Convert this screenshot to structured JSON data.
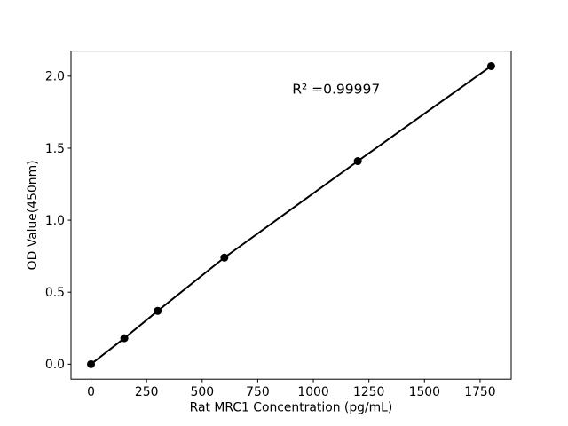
{
  "figure": {
    "background": "#ffffff",
    "foreground": "#000000"
  },
  "chart_data": {
    "type": "line",
    "title": "",
    "xlabel": "Rat MRC1 Concentration (pg/mL)",
    "ylabel": "OD Value(450nm)",
    "series": [
      {
        "name": "standard-curve",
        "x": [
          0,
          150,
          300,
          600,
          1200,
          1800
        ],
        "y": [
          0.0,
          0.18,
          0.37,
          0.74,
          1.41,
          2.07
        ]
      }
    ],
    "xlim": [
      -90,
      1890
    ],
    "ylim": [
      -0.104,
      2.174
    ],
    "xticks": [
      0,
      250,
      500,
      750,
      1000,
      1250,
      1500,
      1750
    ],
    "xtick_labels": [
      "0",
      "250",
      "500",
      "750",
      "1000",
      "1250",
      "1500",
      "1750"
    ],
    "yticks": [
      0,
      0.5,
      1.0,
      1.5,
      2.0
    ],
    "ytick_labels": [
      "0.0",
      "0.5",
      "1.0",
      "1.5",
      "2.0"
    ],
    "grid": false,
    "legend": false,
    "annotation": {
      "text": "R² =0.99997",
      "x": 905,
      "y": 1.88
    },
    "line_color": "#000000",
    "marker_color": "#000000",
    "marker": "circle"
  }
}
